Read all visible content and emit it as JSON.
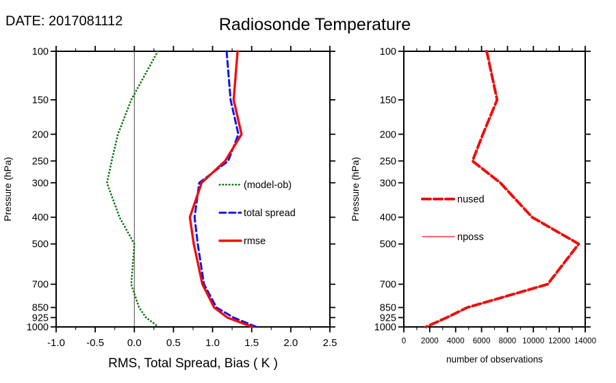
{
  "header": {
    "date_label": "DATE: 2017081112",
    "title": "Radiosonde Temperature"
  },
  "chart_data": [
    {
      "type": "line",
      "panel": "left",
      "title": "Radiosonde Temperature",
      "xlabel": "RMS, Total Spread, Bias ( K )",
      "ylabel": "Pressure (hPa)",
      "xlim": [
        -1.0,
        2.5
      ],
      "xticks": [
        -1.0,
        -0.5,
        0.0,
        0.5,
        1.0,
        1.5,
        2.0,
        2.5
      ],
      "xtick_labels": [
        "-1.0",
        "-0.5",
        "0.0",
        "0.5",
        "1.0",
        "1.5",
        "2.0",
        "2.5"
      ],
      "xminor_step": 0.25,
      "yscale": "log",
      "ylim": [
        100,
        1000
      ],
      "yticks": [
        100,
        150,
        200,
        250,
        300,
        400,
        500,
        700,
        850,
        925,
        1000
      ],
      "pressure_levels": [
        100,
        150,
        200,
        250,
        300,
        400,
        500,
        700,
        850,
        925,
        1000
      ],
      "zero_line": true,
      "grid": false,
      "legend_position": "inside-center-right",
      "series": [
        {
          "name": "(model-ob)",
          "color": "#077507",
          "style": "dotted",
          "width": 2.8,
          "values": [
            0.3,
            -0.04,
            -0.21,
            -0.29,
            -0.35,
            -0.19,
            0.0,
            -0.04,
            0.06,
            0.15,
            0.31
          ]
        },
        {
          "name": "total spread",
          "color": "#1212ee",
          "style": "dashed",
          "width": 3,
          "values": [
            1.18,
            1.23,
            1.33,
            1.2,
            0.83,
            0.77,
            0.81,
            0.89,
            1.05,
            1.27,
            1.56
          ]
        },
        {
          "name": "rmse",
          "color": "#f00d0d",
          "style": "solid",
          "width": 3.4,
          "values": [
            1.32,
            1.27,
            1.37,
            1.16,
            0.86,
            0.71,
            0.76,
            0.87,
            1.02,
            1.19,
            1.51
          ]
        }
      ]
    },
    {
      "type": "line",
      "panel": "right",
      "title": "",
      "xlabel": "number of observations",
      "ylabel": "Pressure (hPa)",
      "xlim": [
        0,
        14000
      ],
      "xticks": [
        0,
        2000,
        4000,
        6000,
        8000,
        10000,
        12000,
        14000
      ],
      "xtick_labels": [
        "0",
        "2000",
        "4000",
        "6000",
        "8000",
        "10000",
        "12000",
        "14000"
      ],
      "xminor_step": 1000,
      "yscale": "log",
      "ylim": [
        100,
        1000
      ],
      "yticks": [
        100,
        150,
        200,
        250,
        300,
        400,
        500,
        700,
        850,
        925,
        1000
      ],
      "pressure_levels": [
        100,
        150,
        200,
        250,
        300,
        400,
        500,
        700,
        850,
        925,
        1000
      ],
      "zero_line": false,
      "grid": false,
      "legend_position": "inside-left",
      "series": [
        {
          "name": "nused",
          "color": "#f00d0d",
          "style": "dashed",
          "width": 4,
          "values": [
            6400,
            7200,
            6100,
            5300,
            7450,
            9900,
            13500,
            11100,
            4900,
            3300,
            1700
          ]
        },
        {
          "name": "nposs",
          "color": "#f00d0d",
          "style": "solid",
          "width": 1.2,
          "values": [
            6450,
            7250,
            6150,
            5350,
            7500,
            9950,
            13550,
            11150,
            4950,
            3350,
            1750
          ]
        }
      ]
    }
  ]
}
